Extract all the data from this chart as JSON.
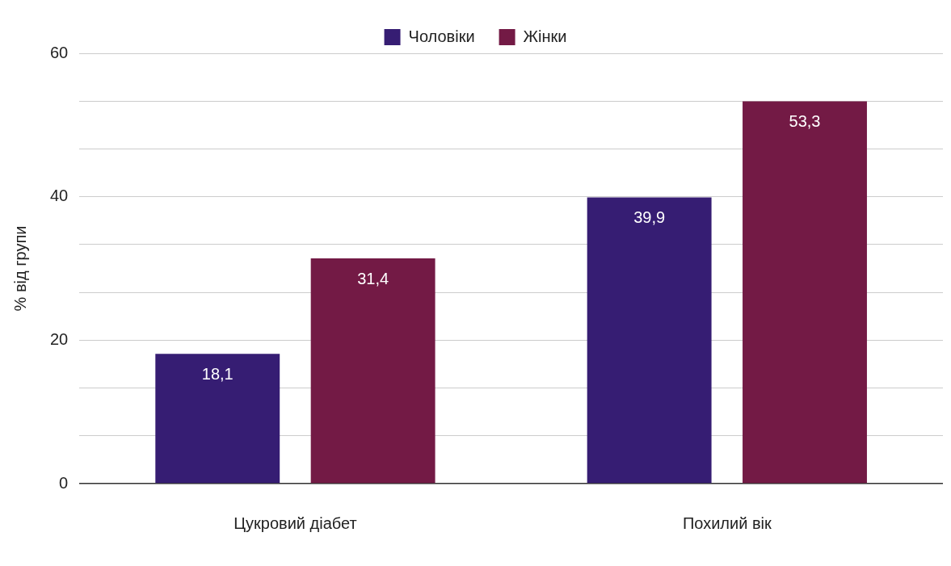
{
  "chart_data": {
    "type": "bar",
    "ylabel": "% від групи",
    "categories": [
      "Цукровий діабет",
      "Похилий вік"
    ],
    "series": [
      {
        "name": "Чоловіки",
        "color": "#361d73",
        "values": [
          18.1,
          39.9
        ],
        "value_labels": [
          "18,1",
          "39,9"
        ]
      },
      {
        "name": "Жінки",
        "color": "#731a45",
        "values": [
          31.4,
          53.3
        ],
        "value_labels": [
          "31,4",
          "53,3"
        ]
      }
    ],
    "ylim": [
      0,
      60
    ],
    "yticks": [
      0,
      {
        "value": 6.67,
        "label": null
      },
      {
        "value": 13.33,
        "label": null
      },
      20,
      {
        "value": 26.67,
        "label": null
      },
      {
        "value": 33.33,
        "label": null
      },
      40,
      {
        "value": 46.67,
        "label": null
      },
      {
        "value": 53.33,
        "label": null
      },
      60
    ],
    "grid": "y",
    "legend": "top"
  }
}
